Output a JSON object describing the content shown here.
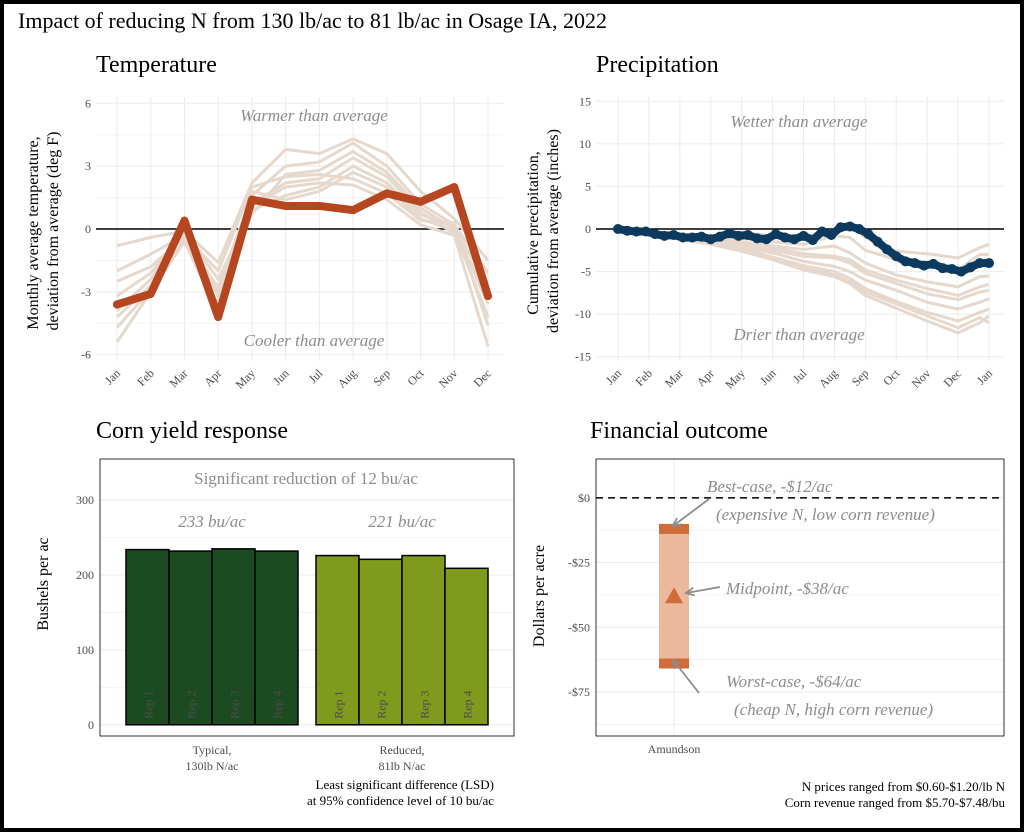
{
  "title": "Impact of reducing N from 130 lb/ac to 81 lb/ac in Osage IA, 2022",
  "colors": {
    "temp_main": "#b5461f",
    "precip_main": "#0c3a5f",
    "history": "#e6d8cc",
    "typical_bar": "#1c4a21",
    "reduced_bar": "#7f9a1c",
    "fin_main": "#cf6c3a",
    "fin_range": "#ebb89c"
  },
  "chart_data": [
    {
      "id": "temperature",
      "type": "line",
      "title": "Temperature",
      "ylabel": [
        "Monthly average temperature,",
        "deviation from average (deg F)"
      ],
      "categories": [
        "Jan",
        "Feb",
        "Mar",
        "Apr",
        "May",
        "Jun",
        "Jul",
        "Aug",
        "Sep",
        "Oct",
        "Nov",
        "Dec"
      ],
      "ylim": [
        -6.3,
        6.3
      ],
      "yticks": [
        -6,
        -3,
        0,
        3,
        6
      ],
      "ytick_labels": [
        "-6",
        "-3",
        "0",
        "3",
        "6"
      ],
      "annotations": [
        "Warmer than average",
        "Cooler than average"
      ],
      "series": [
        {
          "values": [
            -3.6,
            -3.1,
            0.4,
            -4.2,
            1.4,
            1.1,
            1.1,
            0.9,
            1.7,
            1.3,
            2.0,
            -3.2
          ]
        }
      ],
      "history": [
        [
          -0.8,
          -0.4,
          -0.1,
          -1.6,
          2.2,
          3.8,
          3.6,
          4.3,
          3.6,
          1.8,
          0.5,
          -1.5
        ],
        [
          -2.5,
          -1.8,
          -0.4,
          -2.8,
          1.6,
          3.0,
          3.2,
          4.1,
          3.0,
          1.2,
          0.2,
          -2.1
        ],
        [
          -4.2,
          -2.7,
          0.2,
          -3.2,
          0.7,
          2.6,
          2.8,
          3.7,
          2.7,
          1.0,
          0.0,
          -2.6
        ],
        [
          -5.4,
          -3.0,
          -0.6,
          -4.0,
          1.2,
          2.2,
          2.4,
          3.4,
          2.5,
          0.8,
          -0.2,
          -3.1
        ],
        [
          -3.2,
          -2.1,
          -0.2,
          -2.4,
          0.9,
          1.6,
          2.0,
          3.0,
          2.2,
          0.7,
          0.1,
          -3.6
        ],
        [
          -4.7,
          -2.9,
          -0.5,
          -3.6,
          1.8,
          1.4,
          1.8,
          2.7,
          2.0,
          0.5,
          -0.1,
          -4.2
        ],
        [
          -2.0,
          -1.2,
          -0.3,
          -2.0,
          2.0,
          2.5,
          2.6,
          2.4,
          1.7,
          0.4,
          0.3,
          -4.6
        ],
        [
          -3.9,
          -2.4,
          -0.1,
          -3.0,
          1.1,
          2.0,
          2.2,
          2.1,
          1.4,
          0.2,
          -0.3,
          -5.6
        ]
      ]
    },
    {
      "id": "precipitation",
      "type": "line",
      "title": "Precipitation",
      "ylabel": [
        "Cumulative precipitation,",
        "deviation from average (inches)"
      ],
      "x_labels": [
        "Jan",
        "Feb",
        "Mar",
        "Apr",
        "May",
        "Jun",
        "Jul",
        "Aug",
        "Sep",
        "Oct",
        "Nov",
        "Dec",
        "Jan"
      ],
      "ylim": [
        -15.5,
        15.5
      ],
      "yticks": [
        -15,
        -10,
        -5,
        0,
        5,
        10,
        15
      ],
      "ytick_labels": [
        "-15",
        "-10",
        "-5",
        "0",
        "5",
        "10",
        "15"
      ],
      "annotations": [
        "Wetter than average",
        "Drier than average"
      ],
      "series": [
        {
          "x": [
            0,
            0.3,
            0.6,
            0.9,
            1.2,
            1.5,
            1.8,
            2.1,
            2.4,
            2.7,
            3.0,
            3.3,
            3.6,
            3.9,
            4.2,
            4.5,
            4.8,
            5.1,
            5.4,
            5.7,
            6.0,
            6.3,
            6.6,
            6.9,
            7.2,
            7.5,
            7.8,
            8.1,
            8.4,
            8.7,
            9.0,
            9.3,
            9.6,
            9.9,
            10.2,
            10.5,
            10.8,
            11.1,
            11.4,
            11.7,
            12.0
          ],
          "y": [
            0,
            -0.2,
            -0.3,
            -0.3,
            -0.6,
            -0.8,
            -0.7,
            -1.0,
            -1.0,
            -0.9,
            -1.2,
            -0.9,
            -0.5,
            -0.8,
            -0.7,
            -1.1,
            -1.2,
            -0.6,
            -1.0,
            -1.2,
            -0.8,
            -1.3,
            -0.3,
            -0.7,
            0.2,
            0.3,
            0.0,
            -0.6,
            -1.5,
            -2.4,
            -3.2,
            -3.8,
            -4.0,
            -4.3,
            -4.1,
            -4.6,
            -4.7,
            -5.0,
            -4.5,
            -4.0,
            -4.0
          ]
        }
      ],
      "history": [
        {
          "x": [
            0,
            1,
            2,
            3,
            4,
            5,
            6,
            7,
            7.5,
            8,
            9,
            10,
            11,
            11.7,
            12
          ],
          "y": [
            0,
            -0.4,
            -0.6,
            -0.8,
            -0.4,
            -0.8,
            -0.9,
            -0.3,
            0.5,
            -1.0,
            -2.6,
            -2.9,
            -3.4,
            -2.2,
            -1.8
          ]
        },
        {
          "x": [
            0,
            1,
            2,
            3,
            4,
            5,
            6,
            7,
            7.5,
            8,
            9,
            10,
            11,
            11.7,
            12
          ],
          "y": [
            0,
            -0.3,
            -0.6,
            -0.9,
            -1.1,
            -1.5,
            -1.8,
            -0.8,
            -1.0,
            -2.5,
            -3.6,
            -4.4,
            -4.8,
            -3.0,
            -3.0
          ]
        },
        {
          "x": [
            0,
            1,
            2,
            3,
            4,
            5,
            6,
            7,
            7.5,
            8,
            9,
            10,
            11,
            11.7,
            12
          ],
          "y": [
            0,
            -0.5,
            -0.7,
            -1.0,
            -1.5,
            -2.0,
            -2.4,
            -2.0,
            -2.8,
            -4.0,
            -5.4,
            -6.2,
            -6.8,
            -5.6,
            -5.5
          ]
        },
        {
          "x": [
            0,
            1,
            2,
            3,
            4,
            5,
            6,
            7,
            7.5,
            8,
            9,
            10,
            11,
            11.7,
            12
          ],
          "y": [
            0,
            -0.4,
            -0.8,
            -1.2,
            -1.8,
            -2.5,
            -3.2,
            -3.4,
            -4.0,
            -5.2,
            -6.4,
            -7.6,
            -8.3,
            -7.4,
            -7.2
          ]
        },
        {
          "x": [
            0,
            1,
            2,
            3,
            4,
            5,
            6,
            7,
            7.5,
            8,
            9,
            10,
            11,
            11.7,
            12
          ],
          "y": [
            0,
            -0.6,
            -1.0,
            -1.4,
            -2.1,
            -2.8,
            -3.8,
            -4.4,
            -5.0,
            -6.0,
            -7.2,
            -8.6,
            -9.4,
            -8.6,
            -8.2
          ]
        },
        {
          "x": [
            0,
            1,
            2,
            3,
            4,
            5,
            6,
            7,
            7.5,
            8,
            9,
            10,
            11,
            11.7,
            12
          ],
          "y": [
            0,
            -0.5,
            -0.9,
            -1.5,
            -2.3,
            -3.3,
            -4.3,
            -5.0,
            -5.8,
            -7.0,
            -8.5,
            -9.8,
            -10.8,
            -9.8,
            -9.4
          ]
        },
        {
          "x": [
            0,
            1,
            2,
            3,
            4,
            5,
            6,
            7,
            7.5,
            8,
            9,
            10,
            11,
            11.7,
            12
          ],
          "y": [
            0,
            -0.7,
            -1.2,
            -1.8,
            -2.6,
            -3.6,
            -4.8,
            -5.6,
            -6.4,
            -7.8,
            -9.3,
            -10.8,
            -12.2,
            -11.0,
            -10.2
          ]
        },
        {
          "x": [
            0,
            1,
            2,
            3,
            4,
            5,
            6,
            7,
            7.5,
            8,
            9,
            10,
            11,
            11.7,
            12
          ],
          "y": [
            0,
            -0.6,
            -1.1,
            -1.6,
            -2.4,
            -3.4,
            -4.5,
            -5.4,
            -6.2,
            -7.4,
            -8.8,
            -10.2,
            -11.6,
            -10.4,
            -11.0
          ]
        },
        {
          "x": [
            0,
            1,
            2,
            3,
            4,
            5,
            6,
            7,
            7.5,
            8,
            9,
            10,
            11,
            11.7,
            12
          ],
          "y": [
            0,
            -0.4,
            -0.7,
            -1.1,
            -1.6,
            -2.2,
            -2.9,
            -3.2,
            -3.6,
            -4.8,
            -6.0,
            -7.0,
            -7.8,
            -6.8,
            -6.5
          ]
        }
      ]
    },
    {
      "id": "corn_yield",
      "type": "bar",
      "title": "Corn yield response",
      "ylabel": "Bushels per ac",
      "ylim": [
        -15,
        355
      ],
      "yticks": [
        0,
        100,
        200,
        300
      ],
      "ytick_labels": [
        "0",
        "100",
        "200",
        "300"
      ],
      "groups": [
        {
          "label": [
            "Typical,",
            "130lb N/ac"
          ],
          "mean_label": "233 bu/ac",
          "reps": [
            "Rep 1",
            "Rep 2",
            "Rep 3",
            "Rep 4"
          ],
          "values": [
            234,
            232,
            235,
            232
          ]
        },
        {
          "label": [
            "Reduced,",
            "81lb N/ac"
          ],
          "mean_label": "221 bu/ac",
          "reps": [
            "Rep 1",
            "Rep 2",
            "Rep 3",
            "Rep 4"
          ],
          "values": [
            226,
            221,
            226,
            209
          ]
        }
      ],
      "annotation": "Significant reduction of 12 bu/ac",
      "footnote": [
        "Least significant difference (LSD)",
        "at 95% confidence level of 10 bu/ac"
      ]
    },
    {
      "id": "financial",
      "type": "range",
      "title": "Financial outcome",
      "ylabel": "Dollars per acre",
      "ylim": [
        -92,
        15
      ],
      "yticks": [
        0,
        -25,
        -50,
        -75
      ],
      "ytick_labels": [
        "$0",
        "-$25",
        "-$50",
        "-$75"
      ],
      "category": "Amundson",
      "best": -12,
      "mid": -38,
      "worst": -64,
      "labels": {
        "best": [
          "Best-case, -$12/ac",
          "(expensive N, low corn revenue)"
        ],
        "mid": "Midpoint, -$38/ac",
        "worst": [
          "Worst-case, -$64/ac",
          "(cheap N,  high corn revenue)"
        ]
      },
      "footnote": [
        "N prices ranged from $0.60-$1.20/lb N",
        "Corn revenue ranged from $5.70-$7.48/bu"
      ]
    }
  ]
}
